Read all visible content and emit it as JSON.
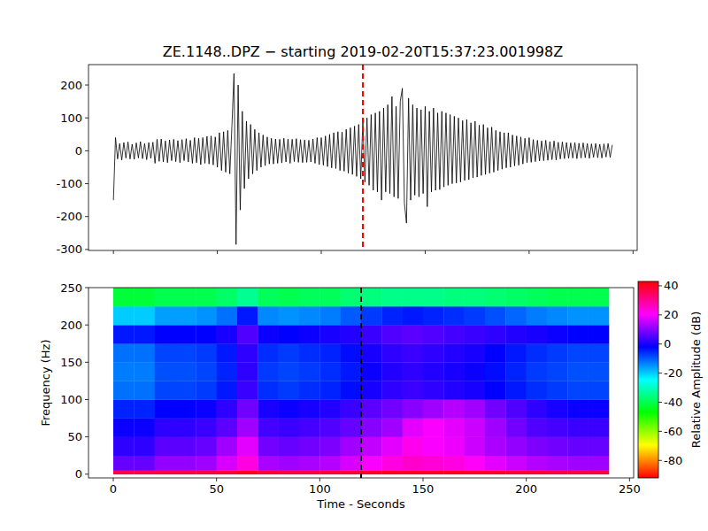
{
  "chart_data": [
    {
      "type": "line",
      "title": "ZE.1148..DPZ − starting 2019-02-20T15:37:23.001998Z",
      "color": "#000000",
      "xlim": [
        -12,
        252
      ],
      "ylim": [
        -303,
        262
      ],
      "xticks": [
        0,
        50,
        100,
        150,
        200,
        250
      ],
      "yticks": [
        -300,
        -200,
        -100,
        0,
        100,
        200
      ],
      "tick_labels": "y",
      "annotations": [
        {
          "x": 120,
          "color": "#ff0000",
          "line_style": "dashed"
        }
      ],
      "x": [
        0,
        1,
        2,
        3,
        4,
        5,
        6,
        7,
        8,
        9,
        10,
        11,
        12,
        13,
        14,
        15,
        16,
        17,
        18,
        19,
        20,
        21,
        22,
        23,
        24,
        25,
        26,
        27,
        28,
        29,
        30,
        31,
        32,
        33,
        34,
        35,
        36,
        37,
        38,
        39,
        40,
        41,
        42,
        43,
        44,
        45,
        46,
        47,
        48,
        49,
        50,
        51,
        52,
        53,
        54,
        55,
        56,
        57,
        58,
        59,
        60,
        61,
        62,
        63,
        64,
        65,
        66,
        67,
        68,
        69,
        70,
        71,
        72,
        73,
        74,
        75,
        76,
        77,
        78,
        79,
        80,
        81,
        82,
        83,
        84,
        85,
        86,
        87,
        88,
        89,
        90,
        91,
        92,
        93,
        94,
        95,
        96,
        97,
        98,
        99,
        100,
        101,
        102,
        103,
        104,
        105,
        106,
        107,
        108,
        109,
        110,
        111,
        112,
        113,
        114,
        115,
        116,
        117,
        118,
        119,
        120,
        121,
        122,
        123,
        124,
        125,
        126,
        127,
        128,
        129,
        130,
        131,
        132,
        133,
        134,
        135,
        136,
        137,
        138,
        139,
        140,
        141,
        142,
        143,
        144,
        145,
        146,
        147,
        148,
        149,
        150,
        151,
        152,
        153,
        154,
        155,
        156,
        157,
        158,
        159,
        160,
        161,
        162,
        163,
        164,
        165,
        166,
        167,
        168,
        169,
        170,
        171,
        172,
        173,
        174,
        175,
        176,
        177,
        178,
        179,
        180,
        181,
        182,
        183,
        184,
        185,
        186,
        187,
        188,
        189,
        190,
        191,
        192,
        193,
        194,
        195,
        196,
        197,
        198,
        199,
        200,
        201,
        202,
        203,
        204,
        205,
        206,
        207,
        208,
        209,
        210,
        211,
        212,
        213,
        214,
        215,
        216,
        217,
        218,
        219,
        220,
        221,
        222,
        223,
        224,
        225,
        226,
        227,
        228,
        229,
        230,
        231,
        232,
        233,
        234,
        235,
        236,
        237,
        238,
        239,
        240
      ],
      "values": [
        -150,
        40,
        -25,
        22,
        -28,
        25,
        -22,
        27,
        -25,
        20,
        -26,
        24,
        -22,
        28,
        -24,
        22,
        -27,
        25,
        -23,
        26,
        -38,
        35,
        -32,
        36,
        -34,
        30,
        -36,
        33,
        -30,
        35,
        -33,
        31,
        -36,
        34,
        -30,
        37,
        -34,
        32,
        -38,
        40,
        -36,
        38,
        -42,
        40,
        -38,
        44,
        -40,
        45,
        -43,
        42,
        -50,
        55,
        -60,
        58,
        -65,
        62,
        -70,
        75,
        235,
        -285,
        200,
        -180,
        120,
        -115,
        90,
        -85,
        80,
        -70,
        65,
        -60,
        55,
        -50,
        48,
        -45,
        42,
        -40,
        38,
        -40,
        36,
        -38,
        35,
        -37,
        38,
        -34,
        36,
        -38,
        35,
        -33,
        37,
        -35,
        34,
        -36,
        33,
        -35,
        32,
        -34,
        36,
        -38,
        40,
        -42,
        40,
        -44,
        45,
        -48,
        50,
        -52,
        55,
        -54,
        58,
        -60,
        57,
        -62,
        65,
        -68,
        70,
        -72,
        75,
        -78,
        80,
        -85,
        90,
        -95,
        100,
        -105,
        110,
        -120,
        115,
        -125,
        120,
        -150,
        130,
        -125,
        140,
        -130,
        165,
        -140,
        135,
        -145,
        150,
        190,
        -160,
        -220,
        160,
        -150,
        140,
        -135,
        130,
        -140,
        125,
        -130,
        135,
        -170,
        120,
        -125,
        130,
        -120,
        115,
        -118,
        120,
        -110,
        115,
        -105,
        110,
        -100,
        105,
        -98,
        100,
        -95,
        92,
        -90,
        95,
        -88,
        85,
        -82,
        90,
        -80,
        78,
        -75,
        80,
        -72,
        70,
        -68,
        72,
        -65,
        62,
        -60,
        58,
        -56,
        55,
        -52,
        55,
        -50,
        48,
        -46,
        45,
        -44,
        42,
        -40,
        38,
        -36,
        40,
        -35,
        34,
        -33,
        32,
        -31,
        30,
        -30,
        32,
        -29,
        28,
        -27,
        30,
        -28,
        26,
        -25,
        27,
        -24,
        25,
        -23,
        24,
        -22,
        25,
        -24,
        23,
        -22,
        24,
        -21,
        22,
        -23,
        21,
        -20,
        22,
        -21,
        20,
        -22,
        21,
        -19,
        22,
        -20,
        18
      ]
    },
    {
      "type": "heatmap",
      "x_label": "Time - Seconds",
      "y_label": "Frequency (Hz)",
      "xlim": [
        -12,
        252
      ],
      "ylim": [
        -5,
        250
      ],
      "xticks": [
        0,
        50,
        100,
        150,
        200,
        250
      ],
      "yticks": [
        0,
        50,
        100,
        150,
        200,
        250
      ],
      "annotations": [
        {
          "x": 120,
          "color": "#000000",
          "line_style": "dashed"
        }
      ],
      "x_edges": [
        0,
        10,
        20,
        30,
        40,
        50,
        60,
        70,
        80,
        90,
        100,
        110,
        120,
        130,
        140,
        150,
        160,
        170,
        180,
        190,
        200,
        210,
        220,
        230,
        240
      ],
      "y_edges": [
        0,
        5,
        25,
        50,
        75,
        100,
        125,
        150,
        175,
        200,
        225,
        250
      ],
      "cells": [
        [
          36,
          36,
          37,
          37,
          37,
          38,
          40,
          38,
          37,
          37,
          38,
          38,
          39,
          40,
          40,
          40,
          40,
          39,
          39,
          38,
          38,
          37,
          37,
          37
        ],
        [
          7,
          7,
          11,
          11,
          12,
          17,
          23,
          13,
          12,
          13,
          14,
          17,
          20,
          23,
          25,
          24,
          23,
          21,
          18,
          16,
          14,
          13,
          12,
          12
        ],
        [
          2,
          2,
          6,
          6,
          7,
          12,
          18,
          8,
          7,
          8,
          9,
          12,
          15,
          18,
          22,
          20,
          19,
          16,
          13,
          11,
          9,
          8,
          7,
          7
        ],
        [
          -1,
          -1,
          2,
          2,
          3,
          6,
          12,
          4,
          3,
          4,
          5,
          7,
          10,
          12,
          18,
          20,
          18,
          16,
          12,
          8,
          5,
          4,
          3,
          3
        ],
        [
          -5,
          -5,
          -2,
          -2,
          -1,
          2,
          8,
          0,
          -1,
          0,
          1,
          3,
          6,
          8,
          10,
          12,
          14,
          12,
          8,
          5,
          2,
          0,
          -1,
          -1
        ],
        [
          -12,
          -12,
          -8,
          -8,
          -7,
          -4,
          3,
          -6,
          -7,
          -6,
          -5,
          -3,
          0,
          2,
          3,
          2,
          1,
          0,
          -2,
          -4,
          -6,
          -7,
          -8,
          -8
        ],
        [
          -13,
          -13,
          -9,
          -9,
          -8,
          -5,
          2,
          -7,
          -8,
          -7,
          -6,
          -4,
          -1,
          1,
          2,
          1,
          0,
          -1,
          -3,
          -5,
          -7,
          -8,
          -9,
          -9
        ],
        [
          -12,
          -12,
          -8,
          -8,
          -7,
          -4,
          2,
          -6,
          -7,
          -6,
          -5,
          -3,
          0,
          2,
          3,
          2,
          1,
          0,
          -2,
          -4,
          -6,
          -7,
          -8,
          -8
        ],
        [
          -4,
          -4,
          -2,
          -2,
          -2,
          0,
          5,
          -1,
          -2,
          -1,
          0,
          1,
          3,
          5,
          6,
          5,
          4,
          3,
          2,
          1,
          0,
          -1,
          -2,
          -2
        ],
        [
          -20,
          -20,
          -16,
          -16,
          -15,
          -12,
          -4,
          -14,
          -15,
          -14,
          -13,
          -10,
          -7,
          -5,
          -4,
          -5,
          -6,
          -7,
          -9,
          -11,
          -13,
          -14,
          -15,
          -15
        ],
        [
          -42,
          -42,
          -40,
          -40,
          -40,
          -38,
          -34,
          -39,
          -40,
          -39,
          -39,
          -37,
          -36,
          -35,
          -35,
          -35,
          -36,
          -36,
          -37,
          -38,
          -39,
          -40,
          -40,
          -40
        ]
      ],
      "colorbar_lim": [
        -92,
        43
      ],
      "colorbar_ticks": [
        -80,
        -60,
        -40,
        -20,
        0,
        20,
        40
      ],
      "colorbar_label": "Relative Amplitude (dB)"
    }
  ]
}
